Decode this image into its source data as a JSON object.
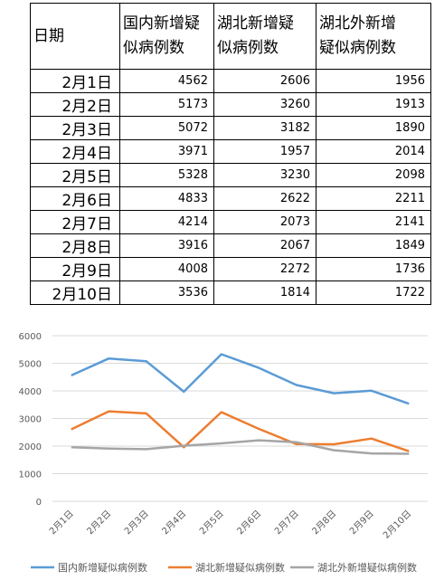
{
  "table": {
    "headers": [
      "日期",
      "国内新增疑似病例数",
      "湖北新增疑似病例数",
      "湖北外新增疑似病例数"
    ],
    "header_lines": [
      [
        "日期"
      ],
      [
        "国内新增疑",
        "似病例数"
      ],
      [
        "湖北新增疑",
        "似病例数"
      ],
      [
        "湖北外新增",
        "疑似病例数"
      ]
    ],
    "rows": [
      [
        "2月1日",
        "4562",
        "2606",
        "1956"
      ],
      [
        "2月2日",
        "5173",
        "3260",
        "1913"
      ],
      [
        "2月3日",
        "5072",
        "3182",
        "1890"
      ],
      [
        "2月4日",
        "3971",
        "1957",
        "2014"
      ],
      [
        "2月5日",
        "5328",
        "3230",
        "2098"
      ],
      [
        "2月6日",
        "4833",
        "2622",
        "2211"
      ],
      [
        "2月7日",
        "4214",
        "2073",
        "2141"
      ],
      [
        "2月8日",
        "3916",
        "2067",
        "1849"
      ],
      [
        "2月9日",
        "4008",
        "2272",
        "1736"
      ],
      [
        "2月10日",
        "3536",
        "1814",
        "1722"
      ]
    ]
  },
  "chart_data": {
    "type": "line",
    "categories": [
      "2月1日",
      "2月2日",
      "2月3日",
      "2月4日",
      "2月5日",
      "2月6日",
      "2月7日",
      "2月8日",
      "2月9日",
      "2月10日"
    ],
    "series": [
      {
        "name": "国内新增疑似病例数",
        "color": "#5B9BD5",
        "values": [
          4562,
          5173,
          5072,
          3971,
          5328,
          4833,
          4214,
          3916,
          4008,
          3536
        ]
      },
      {
        "name": "湖北新增疑似病例数",
        "color": "#ED7D31",
        "values": [
          2606,
          3260,
          3182,
          1957,
          3230,
          2622,
          2073,
          2067,
          2272,
          1814
        ]
      },
      {
        "name": "湖北外新增疑似病例数",
        "color": "#A5A5A5",
        "values": [
          1956,
          1913,
          1890,
          2014,
          2098,
          2211,
          2141,
          1849,
          1736,
          1722
        ]
      }
    ],
    "ylim": [
      0,
      6000
    ],
    "yticks": [
      0,
      1000,
      2000,
      3000,
      4000,
      5000,
      6000
    ],
    "grid": true,
    "legend": "bottom"
  }
}
